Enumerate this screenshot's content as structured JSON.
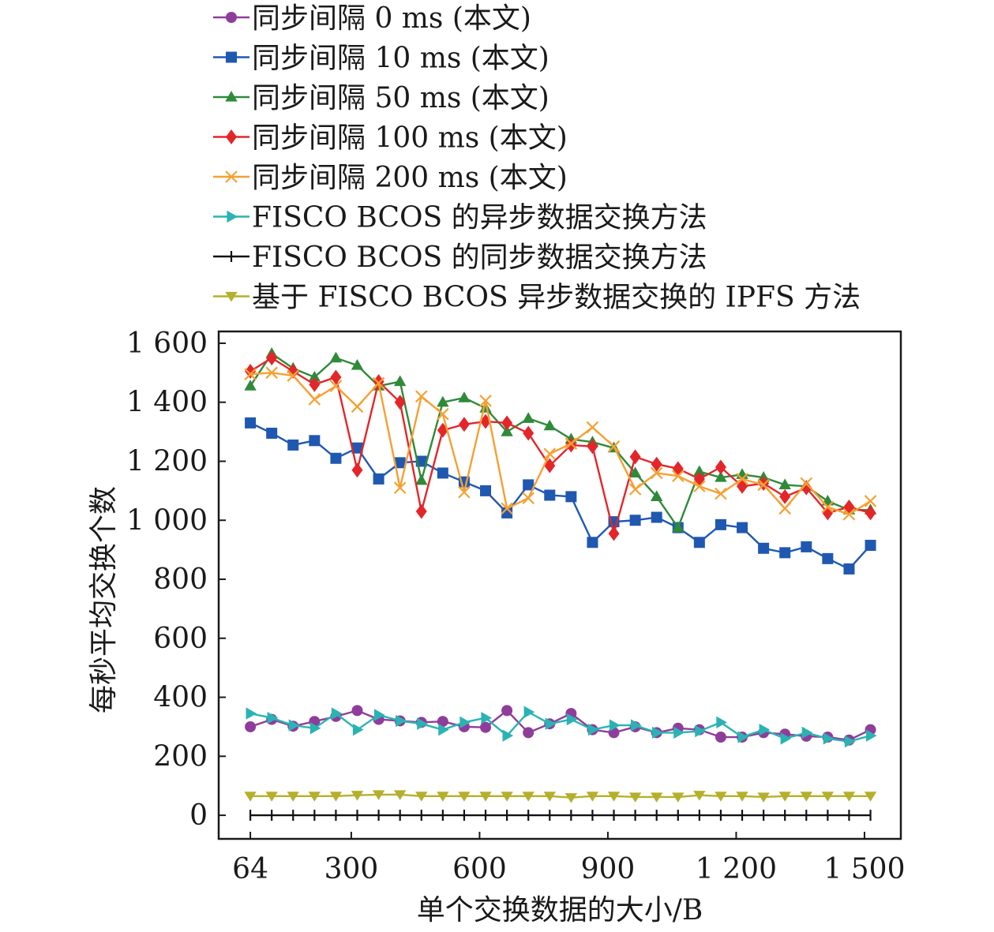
{
  "chart_data": {
    "type": "line",
    "xlabel": "单个交换数据的大小/B",
    "ylabel": "每秒平均交换个数",
    "xlim": [
      -10,
      1585
    ],
    "ylim": [
      -80,
      1640
    ],
    "x_ticks": [
      64,
      300,
      600,
      900,
      1200,
      1500
    ],
    "x_tick_labels": [
      "64",
      "300",
      "600",
      "900",
      "1 200",
      "1 500"
    ],
    "y_ticks": [
      0,
      200,
      400,
      600,
      800,
      1000,
      1200,
      1400,
      1600
    ],
    "y_tick_labels": [
      "0",
      "200",
      "400",
      "600",
      "800",
      "1 000",
      "1 200",
      "1 400",
      "1 600"
    ],
    "x": [
      64,
      114,
      164,
      214,
      264,
      314,
      364,
      414,
      464,
      514,
      564,
      614,
      664,
      714,
      764,
      814,
      864,
      914,
      964,
      1014,
      1064,
      1114,
      1164,
      1214,
      1264,
      1314,
      1364,
      1414,
      1464,
      1514
    ],
    "legend_position": "top",
    "grid": false,
    "series": [
      {
        "name": "同步间隔 0 ms (本文)",
        "color": "#8e3d9b",
        "marker": "circle",
        "values": [
          300,
          325,
          302,
          318,
          335,
          355,
          325,
          320,
          315,
          318,
          300,
          298,
          355,
          280,
          310,
          345,
          290,
          280,
          300,
          280,
          295,
          290,
          265,
          265,
          280,
          275,
          268,
          265,
          255,
          290
        ]
      },
      {
        "name": "同步间隔 10 ms (本文)",
        "color": "#1f58b0",
        "marker": "square",
        "values": [
          1330,
          1295,
          1255,
          1270,
          1210,
          1245,
          1140,
          1195,
          1200,
          1160,
          1130,
          1100,
          1025,
          1120,
          1085,
          1080,
          925,
          995,
          1000,
          1010,
          975,
          925,
          985,
          975,
          905,
          890,
          910,
          870,
          835,
          915
        ]
      },
      {
        "name": "同步间隔 50 ms (本文)",
        "color": "#2f8a3a",
        "marker": "triangle-up",
        "values": [
          1455,
          1565,
          1515,
          1485,
          1550,
          1525,
          1455,
          1470,
          1135,
          1400,
          1415,
          1380,
          1300,
          1345,
          1320,
          1275,
          1265,
          1245,
          1160,
          1080,
          975,
          1165,
          1145,
          1155,
          1145,
          1120,
          1115,
          1065,
          1035,
          1035
        ]
      },
      {
        "name": "同步间隔 100 ms (本文)",
        "color": "#e3262a",
        "marker": "diamond",
        "values": [
          1505,
          1550,
          1505,
          1460,
          1485,
          1170,
          1470,
          1400,
          1030,
          1305,
          1325,
          1335,
          1330,
          1295,
          1185,
          1255,
          1250,
          955,
          1215,
          1190,
          1175,
          1140,
          1180,
          1115,
          1125,
          1080,
          1110,
          1025,
          1045,
          1025
        ]
      },
      {
        "name": "同步间隔 200 ms (本文)",
        "color": "#f5a033",
        "marker": "x",
        "values": [
          1495,
          1500,
          1490,
          1410,
          1455,
          1385,
          1465,
          1110,
          1420,
          1360,
          1095,
          1405,
          1040,
          1075,
          1225,
          1260,
          1315,
          1250,
          1105,
          1160,
          1150,
          1115,
          1090,
          1140,
          1120,
          1040,
          1125,
          1045,
          1020,
          1065
        ]
      },
      {
        "name": "FISCO BCOS 的异步数据交换方法",
        "color": "#2bb3b3",
        "marker": "triangle-right",
        "values": [
          345,
          330,
          305,
          295,
          345,
          290,
          340,
          320,
          310,
          290,
          315,
          330,
          270,
          350,
          310,
          325,
          290,
          305,
          305,
          280,
          280,
          285,
          315,
          265,
          290,
          260,
          280,
          260,
          250,
          270
        ]
      },
      {
        "name": "FISCO BCOS 的同步数据交换方法",
        "color": "#111111",
        "marker": "plus",
        "values": [
          0,
          0,
          0,
          0,
          0,
          0,
          0,
          0,
          0,
          0,
          0,
          0,
          0,
          0,
          0,
          0,
          0,
          0,
          0,
          0,
          0,
          0,
          0,
          0,
          0,
          0,
          0,
          0,
          0,
          0
        ]
      },
      {
        "name": "基于 FISCO BCOS 异步数据交换的 IPFS 方法",
        "color": "#b5b02c",
        "marker": "triangle-down",
        "values": [
          65,
          65,
          65,
          65,
          65,
          68,
          70,
          70,
          65,
          65,
          65,
          65,
          65,
          65,
          65,
          60,
          65,
          65,
          62,
          62,
          62,
          68,
          65,
          65,
          62,
          65,
          65,
          65,
          65,
          65
        ]
      }
    ]
  }
}
